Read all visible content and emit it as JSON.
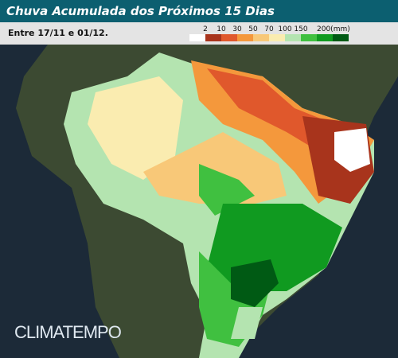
{
  "header": {
    "title": "Chuva Acumulada dos Próximos 15 Dias"
  },
  "subheader": {
    "period": "Entre 17/11 e 01/12."
  },
  "legend": {
    "labels": [
      "2",
      "10",
      "30",
      "50",
      "70",
      "100",
      "150",
      "200(mm)"
    ],
    "colors": [
      "#ffffff",
      "#a8341c",
      "#e0582c",
      "#f4983c",
      "#f8c878",
      "#faecb0",
      "#b4e4b0",
      "#40c040",
      "#109a20",
      "#005a14"
    ]
  },
  "watermark": "CLIMATEMPO"
}
